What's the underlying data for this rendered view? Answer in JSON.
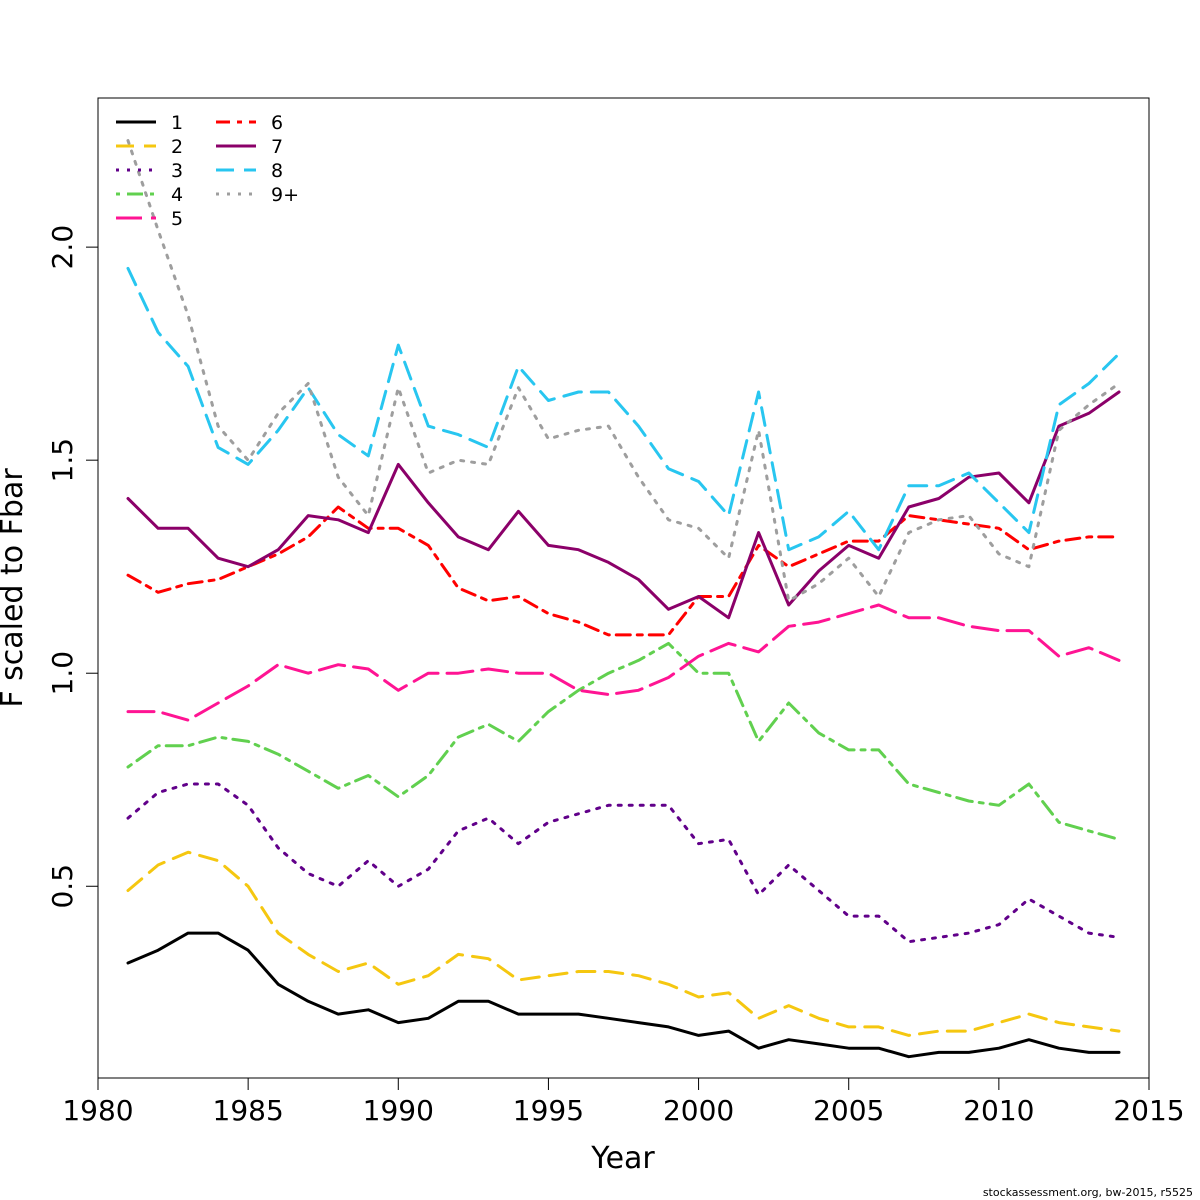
{
  "chart_data": {
    "type": "line",
    "xlabel": "Year",
    "ylabel": "F scaled to Fbar",
    "xlim": [
      1980,
      2015
    ],
    "ylim": [
      0.05,
      2.35
    ],
    "x_ticks": [
      1980,
      1985,
      1990,
      1995,
      2000,
      2005,
      2010,
      2015
    ],
    "y_ticks": [
      0.5,
      1.0,
      1.5,
      2.0
    ],
    "x_tick_labels": [
      "1980",
      "1985",
      "1990",
      "1995",
      "2000",
      "2005",
      "2010",
      "2015"
    ],
    "y_tick_labels": [
      "0.5",
      "1.0",
      "1.5",
      "2.0"
    ],
    "grid": false,
    "legend_position": "top-left",
    "x": [
      1981,
      1982,
      1983,
      1984,
      1985,
      1986,
      1987,
      1988,
      1989,
      1990,
      1991,
      1992,
      1993,
      1994,
      1995,
      1996,
      1997,
      1998,
      1999,
      2000,
      2001,
      2002,
      2003,
      2004,
      2005,
      2006,
      2007,
      2008,
      2009,
      2010,
      2011,
      2012,
      2013,
      2014
    ],
    "series": [
      {
        "name": "1",
        "color": "#000000",
        "dash": "solid",
        "values": [
          0.32,
          0.35,
          0.39,
          0.39,
          0.35,
          0.27,
          0.23,
          0.2,
          0.21,
          0.18,
          0.19,
          0.23,
          0.23,
          0.2,
          0.2,
          0.2,
          0.19,
          0.18,
          0.17,
          0.15,
          0.16,
          0.12,
          0.14,
          0.13,
          0.12,
          0.12,
          0.1,
          0.11,
          0.11,
          0.12,
          0.14,
          0.12,
          0.11,
          0.11
        ]
      },
      {
        "name": "2",
        "color": "#f5c710",
        "dash": "dashed",
        "values": [
          0.49,
          0.55,
          0.58,
          0.56,
          0.5,
          0.39,
          0.34,
          0.3,
          0.32,
          0.27,
          0.29,
          0.34,
          0.33,
          0.28,
          0.29,
          0.3,
          0.3,
          0.29,
          0.27,
          0.24,
          0.25,
          0.19,
          0.22,
          0.19,
          0.17,
          0.17,
          0.15,
          0.16,
          0.16,
          0.18,
          0.2,
          0.18,
          0.17,
          0.16
        ]
      },
      {
        "name": "3",
        "color": "#61008a",
        "dash": "dotted",
        "values": [
          0.66,
          0.72,
          0.74,
          0.74,
          0.69,
          0.59,
          0.53,
          0.5,
          0.56,
          0.5,
          0.54,
          0.63,
          0.66,
          0.6,
          0.65,
          0.67,
          0.69,
          0.69,
          0.69,
          0.6,
          0.61,
          0.48,
          0.55,
          0.49,
          0.43,
          0.43,
          0.37,
          0.38,
          0.39,
          0.41,
          0.47,
          0.43,
          0.39,
          0.38
        ]
      },
      {
        "name": "4",
        "color": "#61d04f",
        "dash": "dotdash",
        "values": [
          0.78,
          0.83,
          0.83,
          0.85,
          0.84,
          0.81,
          0.77,
          0.73,
          0.76,
          0.71,
          0.76,
          0.85,
          0.88,
          0.84,
          0.91,
          0.96,
          1.0,
          1.03,
          1.07,
          1.0,
          1.0,
          0.84,
          0.93,
          0.86,
          0.82,
          0.82,
          0.74,
          0.72,
          0.7,
          0.69,
          0.74,
          0.65,
          0.63,
          0.61
        ]
      },
      {
        "name": "5",
        "color": "#ff1493",
        "dash": "longdash",
        "values": [
          0.91,
          0.91,
          0.89,
          0.93,
          0.97,
          1.02,
          1.0,
          1.02,
          1.01,
          0.96,
          1.0,
          1.0,
          1.01,
          1.0,
          1.0,
          0.96,
          0.95,
          0.96,
          0.99,
          1.04,
          1.07,
          1.05,
          1.11,
          1.12,
          1.14,
          1.16,
          1.13,
          1.13,
          1.11,
          1.1,
          1.1,
          1.04,
          1.06,
          1.03
        ]
      },
      {
        "name": "6",
        "color": "#ff0000",
        "dash": "twodash",
        "values": [
          1.23,
          1.19,
          1.21,
          1.22,
          1.25,
          1.28,
          1.32,
          1.39,
          1.34,
          1.34,
          1.3,
          1.2,
          1.17,
          1.18,
          1.14,
          1.12,
          1.09,
          1.09,
          1.09,
          1.18,
          1.18,
          1.3,
          1.25,
          1.28,
          1.31,
          1.31,
          1.37,
          1.36,
          1.35,
          1.34,
          1.29,
          1.31,
          1.32,
          1.32
        ]
      },
      {
        "name": "7",
        "color": "#8b0069",
        "dash": "solid",
        "values": [
          1.41,
          1.34,
          1.34,
          1.27,
          1.25,
          1.29,
          1.37,
          1.36,
          1.33,
          1.49,
          1.4,
          1.32,
          1.29,
          1.38,
          1.3,
          1.29,
          1.26,
          1.22,
          1.15,
          1.18,
          1.13,
          1.33,
          1.16,
          1.24,
          1.3,
          1.27,
          1.39,
          1.41,
          1.46,
          1.47,
          1.4,
          1.58,
          1.61,
          1.66
        ]
      },
      {
        "name": "8",
        "color": "#28c6f0",
        "dash": "dashed",
        "values": [
          1.95,
          1.8,
          1.72,
          1.53,
          1.49,
          1.57,
          1.67,
          1.56,
          1.51,
          1.77,
          1.58,
          1.56,
          1.53,
          1.72,
          1.64,
          1.66,
          1.66,
          1.58,
          1.48,
          1.45,
          1.37,
          1.66,
          1.29,
          1.32,
          1.38,
          1.29,
          1.44,
          1.44,
          1.47,
          1.4,
          1.33,
          1.63,
          1.68,
          1.75
        ]
      },
      {
        "name": "9+",
        "color": "#9e9e9e",
        "dash": "dotted",
        "values": [
          2.25,
          2.04,
          1.84,
          1.58,
          1.5,
          1.61,
          1.68,
          1.46,
          1.37,
          1.67,
          1.47,
          1.5,
          1.49,
          1.67,
          1.55,
          1.57,
          1.58,
          1.46,
          1.36,
          1.34,
          1.27,
          1.57,
          1.17,
          1.21,
          1.27,
          1.18,
          1.33,
          1.36,
          1.37,
          1.28,
          1.25,
          1.57,
          1.63,
          1.68
        ]
      }
    ]
  },
  "footer": "stockassessment.org, bw-2015, r5525"
}
